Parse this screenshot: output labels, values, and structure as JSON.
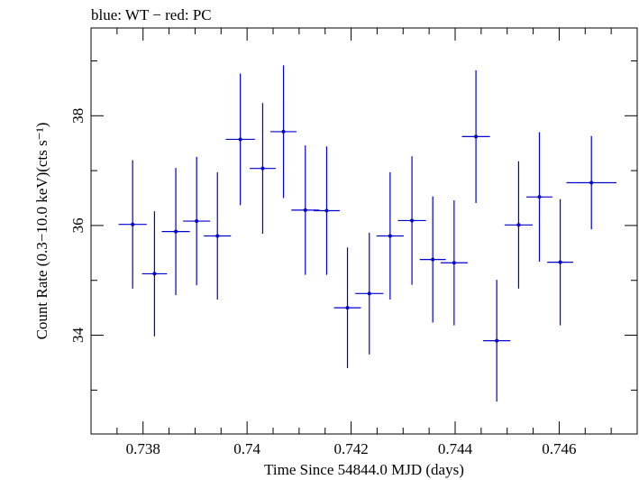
{
  "chart_data": {
    "type": "scatter",
    "title": "blue: WT − red: PC",
    "xlabel": "Time Since 54844.0 MJD (days)",
    "ylabel": "Count Rate (0.3−10.0 keV)(cts s⁻¹)",
    "xlim": [
      0.737,
      0.7475
    ],
    "ylim": [
      32.2,
      39.6
    ],
    "x_ticks": [
      0.738,
      0.74,
      0.742,
      0.744,
      0.746
    ],
    "x_tick_labels": [
      "0.738",
      "0.74",
      "0.742",
      "0.744",
      "0.746"
    ],
    "y_ticks": [
      34,
      36,
      38
    ],
    "y_tick_labels": [
      "34",
      "36",
      "38"
    ],
    "x_minor_step": 0.0005,
    "y_minor_step": 1,
    "grid": false,
    "series": [
      {
        "color": "#0000cc",
        "points": [
          {
            "x": 0.7378,
            "xerr": 0.00027,
            "y": 36.02,
            "yerr": 1.17
          },
          {
            "x": 0.73822,
            "xerr": 0.00024,
            "y": 35.12,
            "yerr": 1.14
          },
          {
            "x": 0.73863,
            "xerr": 0.00027,
            "y": 35.89,
            "yerr": 1.16
          },
          {
            "x": 0.73903,
            "xerr": 0.00026,
            "y": 36.08,
            "yerr": 1.17
          },
          {
            "x": 0.73943,
            "xerr": 0.00026,
            "y": 35.81,
            "yerr": 1.16
          },
          {
            "x": 0.73987,
            "xerr": 0.00028,
            "y": 37.57,
            "yerr": 1.2
          },
          {
            "x": 0.7403,
            "xerr": 0.00025,
            "y": 37.04,
            "yerr": 1.19
          },
          {
            "x": 0.7407,
            "xerr": 0.00025,
            "y": 37.71,
            "yerr": 1.21
          },
          {
            "x": 0.74112,
            "xerr": 0.00027,
            "y": 36.28,
            "yerr": 1.18
          },
          {
            "x": 0.74153,
            "xerr": 0.00025,
            "y": 36.27,
            "yerr": 1.17
          },
          {
            "x": 0.74193,
            "xerr": 0.00026,
            "y": 34.5,
            "yerr": 1.1
          },
          {
            "x": 0.74235,
            "xerr": 0.00027,
            "y": 34.76,
            "yerr": 1.11
          },
          {
            "x": 0.74275,
            "xerr": 0.00026,
            "y": 35.81,
            "yerr": 1.16
          },
          {
            "x": 0.74317,
            "xerr": 0.00027,
            "y": 36.09,
            "yerr": 1.17
          },
          {
            "x": 0.74357,
            "xerr": 0.00025,
            "y": 35.38,
            "yerr": 1.15
          },
          {
            "x": 0.74398,
            "xerr": 0.00026,
            "y": 35.32,
            "yerr": 1.14
          },
          {
            "x": 0.7444,
            "xerr": 0.00027,
            "y": 37.62,
            "yerr": 1.21
          },
          {
            "x": 0.7448,
            "xerr": 0.00026,
            "y": 33.9,
            "yerr": 1.11
          },
          {
            "x": 0.74522,
            "xerr": 0.00027,
            "y": 36.01,
            "yerr": 1.16
          },
          {
            "x": 0.74562,
            "xerr": 0.00025,
            "y": 36.52,
            "yerr": 1.18
          },
          {
            "x": 0.74602,
            "xerr": 0.00025,
            "y": 35.33,
            "yerr": 1.15
          },
          {
            "x": 0.74662,
            "xerr": 0.00048,
            "y": 36.78,
            "yerr": 0.85
          }
        ]
      }
    ]
  }
}
